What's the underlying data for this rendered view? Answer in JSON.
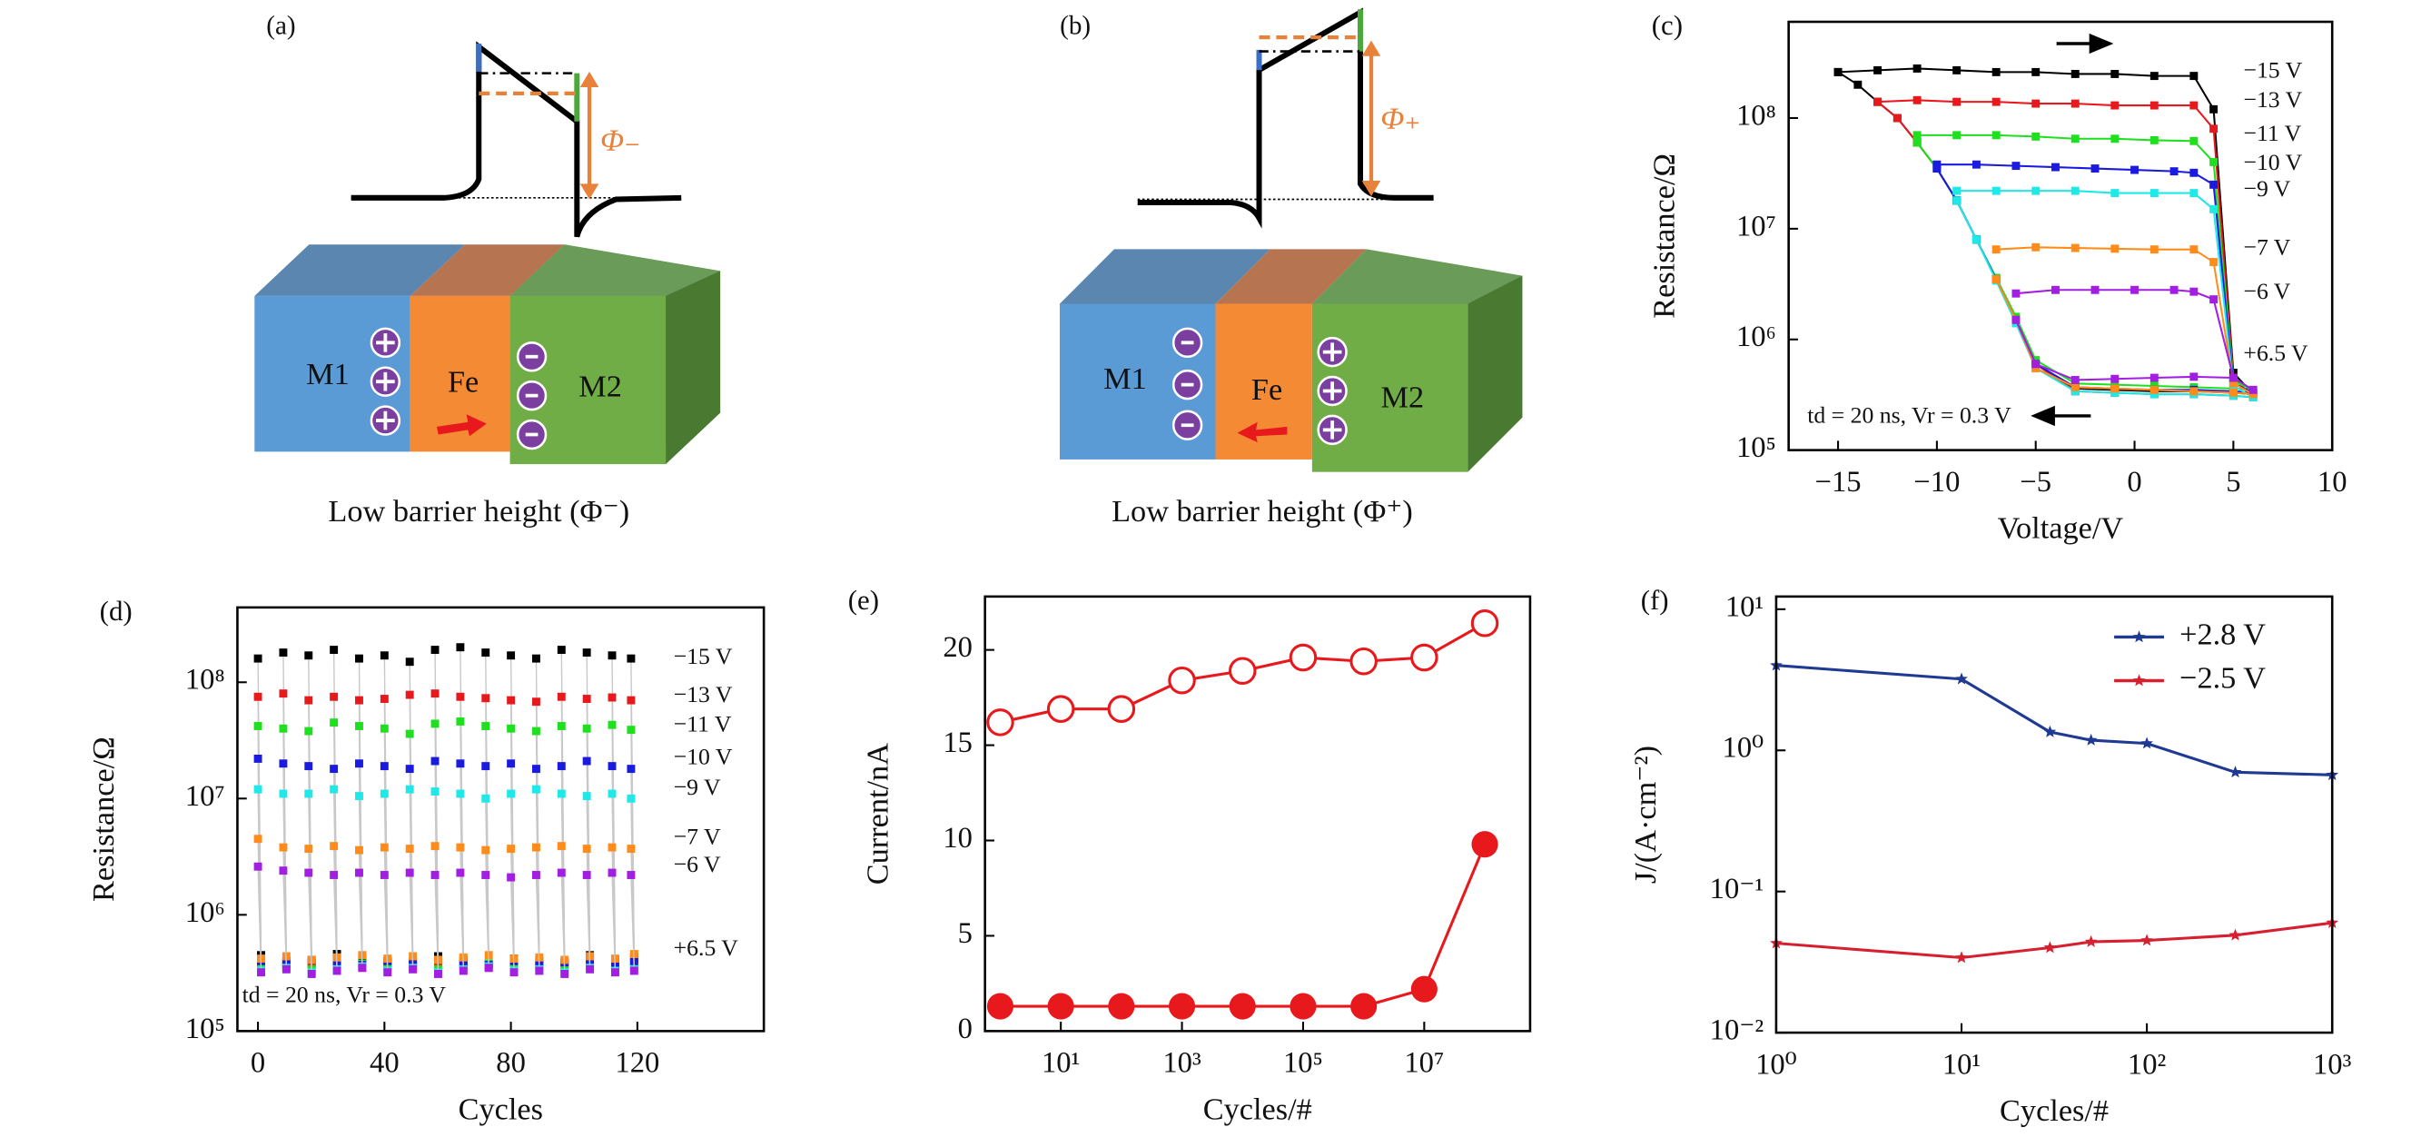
{
  "diagrams": [
    {
      "label": "(a)",
      "layers": [
        "M1",
        "Fe",
        "M2"
      ],
      "phi": "Φ₋",
      "caption": "Low barrier height (Φ⁻)"
    },
    {
      "label": "(b)",
      "layers": [
        "M1",
        "Fe",
        "M2"
      ],
      "phi": "Φ₊",
      "caption": "Low barrier height (Φ⁺)"
    }
  ],
  "chart_data": [
    {
      "type": "line",
      "label": "(c)",
      "xlabel": "Voltage/V",
      "ylabel": "Resistance/Ω",
      "yscale": "log",
      "marker": "square",
      "xlim": [
        -17.5,
        10
      ],
      "ylim": [
        100000,
        740000000
      ],
      "xticks": [
        {
          "value": -15,
          "label": "−15"
        },
        {
          "value": -10,
          "label": "−10"
        },
        {
          "value": -5,
          "label": "−5"
        },
        0,
        5,
        10
      ],
      "yticks": [
        {
          "value": 100000,
          "label": "10⁵"
        },
        {
          "value": 1000000,
          "label": "10⁶"
        },
        {
          "value": 10000000,
          "label": "10⁷"
        },
        {
          "value": 100000000,
          "label": "10⁸"
        }
      ],
      "annotations": [
        "+6.5 V",
        "td = 20 ns, Vr = 0.3 V"
      ],
      "series": [
        {
          "name": "−15 V",
          "color": "#000000",
          "x": [
            -15,
            -13,
            -11,
            -9,
            -7,
            -5,
            -3,
            -1,
            1,
            3,
            4,
            5,
            6,
            5,
            3,
            1,
            -1,
            -3,
            -5,
            -6,
            -7,
            -8,
            -9,
            -10,
            -11,
            -12,
            -13,
            -14,
            -15
          ],
          "values": [
            260000000.0,
            270000000.0,
            280000000.0,
            270000000.0,
            260000000.0,
            260000000.0,
            250000000.0,
            250000000.0,
            240000000.0,
            240000000.0,
            120000000.0,
            500000.0,
            320000.0,
            330000.0,
            340000.0,
            340000.0,
            350000.0,
            360000.0,
            600000.0,
            1500000.0,
            3500000.0,
            8000000.0,
            18000000.0,
            35000000.0,
            60000000.0,
            100000000.0,
            140000000.0,
            200000000.0,
            260000000.0
          ]
        },
        {
          "name": "−13 V",
          "color": "#e8191c",
          "x": [
            -13,
            -11,
            -9,
            -7,
            -5,
            -3,
            -1,
            1,
            3,
            4,
            5,
            6,
            5,
            3,
            1,
            -1,
            -3,
            -5,
            -6,
            -7,
            -8,
            -9,
            -10,
            -11,
            -12,
            -13
          ],
          "values": [
            140000000.0,
            145000000.0,
            140000000.0,
            140000000.0,
            135000000.0,
            135000000.0,
            130000000.0,
            130000000.0,
            130000000.0,
            80000000.0,
            450000.0,
            300000.0,
            310000.0,
            320000.0,
            320000.0,
            330000.0,
            340000.0,
            600000.0,
            1500000.0,
            3500000.0,
            8000000.0,
            18000000.0,
            35000000.0,
            60000000.0,
            100000000.0,
            140000000.0
          ]
        },
        {
          "name": "−11 V",
          "color": "#1fe01f",
          "x": [
            -11,
            -9,
            -7,
            -5,
            -3,
            -1,
            1,
            3,
            4,
            5,
            6,
            5,
            3,
            1,
            -1,
            -3,
            -5,
            -6,
            -7,
            -8,
            -9,
            -10,
            -11
          ],
          "values": [
            70000000.0,
            70000000.0,
            70000000.0,
            68000000.0,
            65000000.0,
            65000000.0,
            63000000.0,
            62000000.0,
            40000000.0,
            420000.0,
            350000.0,
            360000.0,
            370000.0,
            380000.0,
            390000.0,
            400000.0,
            650000.0,
            1600000.0,
            3600000.0,
            8000000.0,
            18000000.0,
            35000000.0,
            60000000.0
          ]
        },
        {
          "name": "−10 V",
          "color": "#1a1ae0",
          "x": [
            -10,
            -8,
            -6,
            -4,
            -2,
            0,
            2,
            3,
            4,
            5,
            6,
            5,
            3,
            1,
            -1,
            -3,
            -5,
            -6,
            -7,
            -8,
            -9,
            -10
          ],
          "values": [
            38000000.0,
            38000000.0,
            37000000.0,
            36000000.0,
            35000000.0,
            34000000.0,
            33000000.0,
            32000000.0,
            25000000.0,
            400000.0,
            330000.0,
            340000.0,
            350000.0,
            350000.0,
            360000.0,
            370000.0,
            600000.0,
            1500000.0,
            3500000.0,
            8000000.0,
            18000000.0,
            35000000.0
          ]
        },
        {
          "name": "−9 V",
          "color": "#1ee8e8",
          "x": [
            -9,
            -7,
            -5,
            -3,
            -1,
            1,
            3,
            4,
            5,
            6,
            5,
            3,
            1,
            -1,
            -3,
            -5,
            -6,
            -7,
            -8,
            -9
          ],
          "values": [
            22000000.0,
            22000000.0,
            22000000.0,
            22000000.0,
            21000000.0,
            21000000.0,
            21000000.0,
            15000000.0,
            380000.0,
            300000.0,
            310000.0,
            320000.0,
            320000.0,
            330000.0,
            340000.0,
            550000.0,
            1400000.0,
            3400000.0,
            8000000.0,
            18000000.0
          ]
        },
        {
          "name": "−7 V",
          "color": "#ff8c1a",
          "x": [
            -7,
            -5,
            -3,
            -1,
            1,
            3,
            4,
            5,
            6,
            5,
            3,
            1,
            -1,
            -3,
            -5,
            -6,
            -7
          ],
          "values": [
            6500000.0,
            6800000.0,
            6700000.0,
            6600000.0,
            6500000.0,
            6500000.0,
            5000000.0,
            400000.0,
            320000.0,
            330000.0,
            340000.0,
            350000.0,
            360000.0,
            370000.0,
            550000.0,
            1500000.0,
            3500000.0
          ]
        },
        {
          "name": "−6 V",
          "color": "#a21ee0",
          "x": [
            -6,
            -4,
            -2,
            0,
            2,
            3,
            4,
            5,
            6,
            5,
            3,
            1,
            -1,
            -3,
            -5,
            -6
          ],
          "values": [
            2600000.0,
            2800000.0,
            2800000.0,
            2800000.0,
            2800000.0,
            2700000.0,
            2300000.0,
            450000.0,
            350000.0,
            450000.0,
            460000.0,
            450000.0,
            440000.0,
            430000.0,
            600000.0,
            1500000.0
          ]
        }
      ]
    },
    {
      "type": "scatter",
      "label": "(d)",
      "xlabel": "Cycles",
      "ylabel": "Resistance/Ω",
      "yscale": "log",
      "marker": "square",
      "xlim": [
        -6.5,
        160
      ],
      "ylim": [
        100000,
        440000000
      ],
      "xticks": [
        0,
        40,
        80,
        120
      ],
      "yticks": [
        {
          "value": 100000,
          "label": "10⁵"
        },
        {
          "value": 1000000,
          "label": "10⁶"
        },
        {
          "value": 10000000,
          "label": "10⁷"
        },
        {
          "value": 100000000,
          "label": "10⁸"
        }
      ],
      "annotations": [
        "+6.5 V",
        "td = 20 ns, Vr = 0.3 V"
      ],
      "x": [
        0,
        8,
        16,
        24,
        32,
        40,
        48,
        56,
        64,
        72,
        80,
        88,
        96,
        104,
        112,
        118
      ],
      "series": [
        {
          "name": "−15 V",
          "color": "#000000",
          "values": [
            160000000.0,
            180000000.0,
            170000000.0,
            190000000.0,
            160000000.0,
            170000000.0,
            150000000.0,
            190000000.0,
            200000000.0,
            180000000.0,
            170000000.0,
            160000000.0,
            190000000.0,
            180000000.0,
            170000000.0,
            160000000.0
          ],
          "low_values": [
            450000.0,
            400000.0,
            380000.0,
            460000.0,
            420000.0,
            400000.0,
            390000.0,
            440000.0,
            410000.0,
            380000.0,
            420000.0,
            400000.0,
            390000.0,
            450000.0,
            410000.0,
            430000.0
          ]
        },
        {
          "name": "−13 V",
          "color": "#e8191c",
          "values": [
            75000000.0,
            80000000.0,
            70000000.0,
            75000000.0,
            70000000.0,
            72000000.0,
            78000000.0,
            80000000.0,
            75000000.0,
            73000000.0,
            70000000.0,
            68000000.0,
            75000000.0,
            72000000.0,
            74000000.0,
            70000000.0
          ],
          "low_values": [
            380000.0,
            360000.0,
            390000.0,
            370000.0,
            350000.0,
            380000.0,
            360000.0,
            390000.0,
            370000.0,
            350000.0,
            380000.0,
            360000.0,
            370000.0,
            390000.0,
            360000.0,
            380000.0
          ]
        },
        {
          "name": "−11 V",
          "color": "#1fe01f",
          "values": [
            42000000.0,
            40000000.0,
            38000000.0,
            45000000.0,
            42000000.0,
            40000000.0,
            36000000.0,
            44000000.0,
            46000000.0,
            42000000.0,
            40000000.0,
            38000000.0,
            42000000.0,
            40000000.0,
            43000000.0,
            39000000.0
          ],
          "low_values": [
            350000.0,
            370000.0,
            340000.0,
            360000.0,
            380000.0,
            350000.0,
            370000.0,
            340000.0,
            360000.0,
            380000.0,
            350000.0,
            360000.0,
            340000.0,
            370000.0,
            350000.0,
            360000.0
          ]
        },
        {
          "name": "−10 V",
          "color": "#1a1ae0",
          "values": [
            22000000.0,
            20000000.0,
            19000000.0,
            18000000.0,
            20000000.0,
            19000000.0,
            18000000.0,
            21000000.0,
            20000000.0,
            19000000.0,
            20000000.0,
            18000000.0,
            19000000.0,
            21000000.0,
            19000000.0,
            18000000.0
          ],
          "low_values": [
            400000.0,
            380000.0,
            410000.0,
            390000.0,
            370000.0,
            400000.0,
            380000.0,
            410000.0,
            390000.0,
            370000.0,
            400000.0,
            380000.0,
            390000.0,
            410000.0,
            380000.0,
            400000.0
          ]
        },
        {
          "name": "−9 V",
          "color": "#1ee8e8",
          "values": [
            12000000.0,
            11000000.0,
            11000000.0,
            12000000.0,
            10500000.0,
            11000000.0,
            12000000.0,
            11500000.0,
            11000000.0,
            10000000.0,
            11000000.0,
            12000000.0,
            11000000.0,
            10500000.0,
            11000000.0,
            10000000.0
          ],
          "low_values": [
            330000.0,
            350000.0,
            320000.0,
            340000.0,
            360000.0,
            330000.0,
            350000.0,
            320000.0,
            340000.0,
            360000.0,
            330000.0,
            340000.0,
            320000.0,
            350000.0,
            330000.0,
            340000.0
          ]
        },
        {
          "name": "−7 V",
          "color": "#ff8c1a",
          "values": [
            4500000.0,
            3800000.0,
            3700000.0,
            3900000.0,
            3600000.0,
            3800000.0,
            3700000.0,
            3900000.0,
            3800000.0,
            3600000.0,
            3700000.0,
            3800000.0,
            3900000.0,
            3700000.0,
            3800000.0,
            3700000.0
          ],
          "low_values": [
            420000.0,
            440000.0,
            410000.0,
            430000.0,
            450000.0,
            420000.0,
            440000.0,
            410000.0,
            430000.0,
            450000.0,
            420000.0,
            430000.0,
            410000.0,
            440000.0,
            420000.0,
            460000.0
          ]
        },
        {
          "name": "−6 V",
          "color": "#a21ee0",
          "values": [
            2600000.0,
            2400000.0,
            2300000.0,
            2200000.0,
            2300000.0,
            2200000.0,
            2300000.0,
            2200000.0,
            2300000.0,
            2200000.0,
            2100000.0,
            2200000.0,
            2300000.0,
            2200000.0,
            2300000.0,
            2200000.0
          ],
          "low_values": [
            320000.0,
            340000.0,
            310000.0,
            330000.0,
            350000.0,
            320000.0,
            340000.0,
            310000.0,
            330000.0,
            350000.0,
            320000.0,
            330000.0,
            310000.0,
            340000.0,
            320000.0,
            330000.0
          ]
        }
      ]
    },
    {
      "type": "line",
      "label": "(e)",
      "xlabel": "Cycles/#",
      "ylabel": "Current/nA",
      "xscale": "log",
      "xlim": [
        0.56,
        560000000
      ],
      "ylim": [
        0,
        22.8
      ],
      "xticks": [
        {
          "value": 10,
          "label": "10¹"
        },
        {
          "value": 1000,
          "label": "10³"
        },
        {
          "value": 100000,
          "label": "10⁵"
        },
        {
          "value": 10000000,
          "label": "10⁷"
        }
      ],
      "yticks": [
        0,
        5,
        10,
        15,
        20
      ],
      "x": [
        1,
        10,
        100,
        1000,
        10000,
        100000,
        1000000,
        10000000,
        100000000
      ],
      "series": [
        {
          "color": "#e8191c",
          "marker": "open-circle",
          "values": [
            16.2,
            16.9,
            16.9,
            18.4,
            18.9,
            19.6,
            19.4,
            19.6,
            21.4
          ]
        },
        {
          "color": "#e8191c",
          "marker": "circle",
          "values": [
            1.3,
            1.3,
            1.3,
            1.3,
            1.3,
            1.3,
            1.3,
            2.2,
            9.8
          ]
        }
      ]
    },
    {
      "type": "line",
      "label": "(f)",
      "xlabel": "Cycles/#",
      "ylabel": "J/(A·cm⁻²)",
      "xscale": "log",
      "yscale": "log",
      "legend": "upper right",
      "xlim": [
        1,
        1000
      ],
      "ylim": [
        0.01,
        12.3
      ],
      "xticks": [
        {
          "value": 1,
          "label": "10⁰"
        },
        {
          "value": 10,
          "label": "10¹"
        },
        {
          "value": 100,
          "label": "10²"
        },
        {
          "value": 1000,
          "label": "10³"
        }
      ],
      "yticks": [
        {
          "value": 0.01,
          "label": "10⁻²"
        },
        {
          "value": 0.1,
          "label": "10⁻¹"
        },
        {
          "value": 1,
          "label": "10⁰"
        },
        {
          "value": 10,
          "label": "10¹"
        }
      ],
      "x": [
        1,
        10,
        30,
        50,
        100,
        300,
        1000
      ],
      "series": [
        {
          "name": "+2.8 V",
          "color": "#1f3a93",
          "marker": "star",
          "values": [
            4.0,
            3.2,
            1.35,
            1.18,
            1.12,
            0.7,
            0.67
          ]
        },
        {
          "name": "−2.5 V",
          "color": "#d62030",
          "marker": "star",
          "values": [
            0.043,
            0.034,
            0.04,
            0.044,
            0.045,
            0.049,
            0.06
          ]
        }
      ]
    }
  ]
}
